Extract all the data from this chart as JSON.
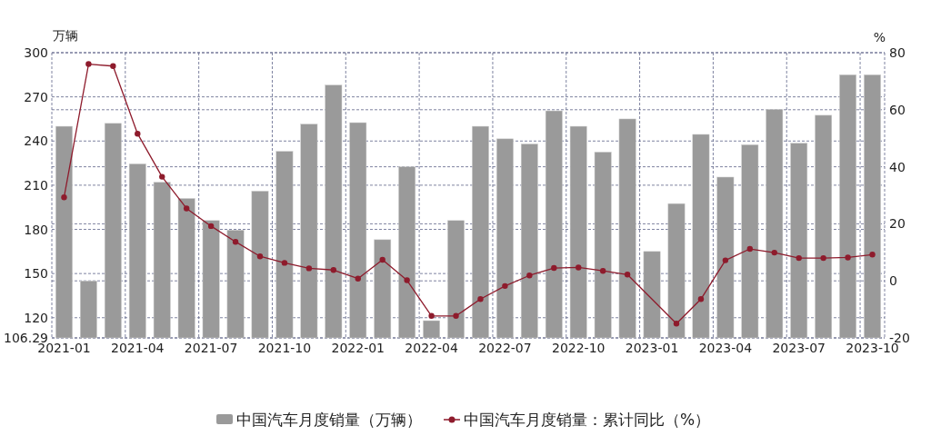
{
  "chart_data": {
    "type": "bar",
    "categories": [
      "2021-01",
      null,
      null,
      "2021-04",
      null,
      null,
      "2021-07",
      null,
      null,
      "2021-10",
      null,
      null,
      "2022-01",
      null,
      null,
      "2022-04",
      null,
      null,
      "2022-07",
      null,
      null,
      "2022-10",
      null,
      null,
      "2023-01",
      null,
      null,
      "2023-04",
      null,
      null,
      "2023-07",
      null,
      null,
      "2023-10"
    ],
    "series": [
      {
        "name": "中国汽车月度销量（万辆）",
        "color": "#9a9a9a",
        "values": [
          250,
          145,
          252,
          224.5,
          212,
          201,
          186,
          179.5,
          206,
          233,
          251.5,
          278,
          252.5,
          173,
          222.5,
          118,
          186,
          250,
          241.5,
          238,
          260.5,
          250,
          232.5,
          255,
          165,
          197.5,
          244.5,
          215.5,
          237.5,
          261.5,
          238.5,
          257.5,
          285,
          285
        ]
      },
      {
        "name": "中国汽车月度销量：累计同比（%）",
        "type": "line",
        "axis": "y2",
        "color": "#8e1b2c",
        "marker": "circle",
        "values": [
          29.3,
          76,
          75.3,
          51.6,
          36.5,
          25.4,
          19.2,
          13.7,
          8.6,
          6.3,
          4.4,
          3.8,
          0.8,
          7.4,
          0.2,
          -12.3,
          -12.3,
          -6.4,
          -1.8,
          1.9,
          4.5,
          4.7,
          3.5,
          2.2,
          null,
          -15,
          -6.4,
          7.2,
          11.2,
          9.9,
          8,
          8,
          8.2,
          9.2
        ]
      }
    ],
    "ylabel": "万辆",
    "y2label": "%",
    "ylim": [
      106.29,
      300
    ],
    "yticks": [
      106.29,
      120,
      150,
      180,
      210,
      240,
      270,
      300
    ],
    "y2lim": [
      -20,
      80
    ],
    "y2ticks": [
      -20,
      0,
      20,
      40,
      60,
      80
    ],
    "grid": true,
    "legend": "bottom"
  }
}
